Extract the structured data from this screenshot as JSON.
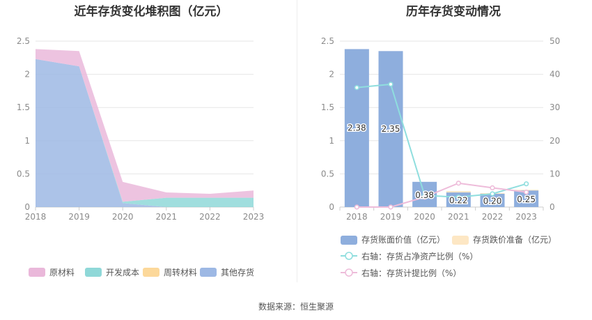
{
  "chart_data": [
    {
      "type": "area",
      "title": "近年存货变化堆积图（亿元）",
      "x": [
        "2018",
        "2019",
        "2020",
        "2021",
        "2022",
        "2023"
      ],
      "ylim": [
        0,
        2.5
      ],
      "yticks": [
        "0",
        "0.5",
        "1",
        "1.5",
        "2",
        "2.5"
      ],
      "stacked": true,
      "legend_position": "bottom",
      "series": [
        {
          "name": "其他存货",
          "color": "#9db8e4",
          "values": [
            2.23,
            2.12,
            0.06,
            0.0,
            0.0,
            0.0
          ]
        },
        {
          "name": "周转材料",
          "color": "#fcd89a",
          "values": [
            0.0,
            0.0,
            0.0,
            0.0,
            0.0,
            0.0
          ]
        },
        {
          "name": "开发成本",
          "color": "#8fd8d8",
          "values": [
            0.0,
            0.0,
            0.02,
            0.14,
            0.14,
            0.14
          ]
        },
        {
          "name": "原材料",
          "color": "#eab8da",
          "values": [
            0.15,
            0.23,
            0.3,
            0.08,
            0.06,
            0.11
          ]
        }
      ],
      "legend_order": [
        "原材料",
        "开发成本",
        "周转材料",
        "其他存货"
      ]
    },
    {
      "type": "bar",
      "title": "历年存货变动情况",
      "categories": [
        "2018",
        "2019",
        "2020",
        "2021",
        "2022",
        "2023"
      ],
      "ylim_left": [
        0,
        2.5
      ],
      "yticks_left": [
        "0",
        "0.5",
        "1",
        "1.5",
        "2",
        "2.5"
      ],
      "ylim_right": [
        0,
        50
      ],
      "yticks_right": [
        "0",
        "10",
        "20",
        "30",
        "40",
        "50"
      ],
      "legend_position": "bottom",
      "bars": [
        {
          "name": "存货账面价值（亿元）",
          "color": "#8eaedd",
          "values": [
            2.38,
            2.35,
            0.38,
            0.22,
            0.2,
            0.25
          ],
          "labels": [
            "2.38",
            "2.35",
            "0.38",
            "0.22",
            "0.20",
            "0.25"
          ]
        },
        {
          "name": "存货跌价准备（亿元）",
          "color": "#fde7c4",
          "values": [
            0.0,
            0.0,
            0.0,
            0.02,
            0.01,
            0.01
          ]
        }
      ],
      "lines": [
        {
          "name": "右轴：存货占净资产比例（%）",
          "color": "#8fdede",
          "values": [
            36.0,
            37.0,
            3.5,
            3.0,
            4.0,
            7.0
          ]
        },
        {
          "name": "右轴：存货计提比例（%）",
          "color": "#eebcda",
          "values": [
            0.0,
            0.0,
            3.0,
            7.2,
            5.8,
            4.5
          ]
        }
      ]
    }
  ],
  "source": "数据来源：恒生聚源"
}
